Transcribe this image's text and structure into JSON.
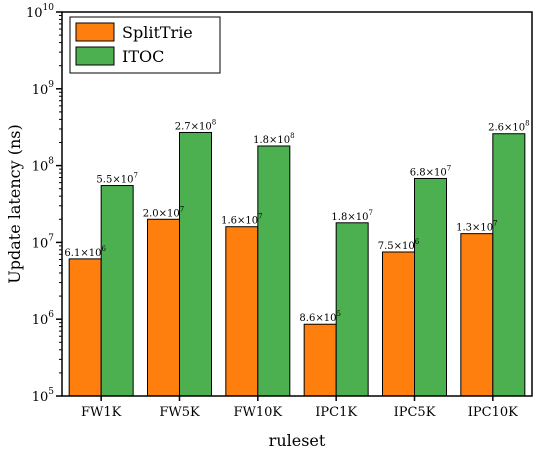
{
  "chart_data": {
    "type": "bar",
    "title": "",
    "xlabel": "ruleset",
    "ylabel": "Update latency (ns)",
    "yscale": "log",
    "ylim": [
      100000,
      10000000000
    ],
    "y_ticks": [
      {
        "base": "10",
        "exp": "5"
      },
      {
        "base": "10",
        "exp": "6"
      },
      {
        "base": "10",
        "exp": "7"
      },
      {
        "base": "10",
        "exp": "8"
      },
      {
        "base": "10",
        "exp": "9"
      },
      {
        "base": "10",
        "exp": "10"
      }
    ],
    "categories": [
      "FW1K",
      "FW5K",
      "FW10K",
      "IPC1K",
      "IPC5K",
      "IPC10K"
    ],
    "series": [
      {
        "name": "SplitTrie",
        "color": "#ff7f0e",
        "values": [
          6100000,
          20000000,
          16000000,
          860000,
          7500000,
          13000000
        ],
        "labels": [
          {
            "mantissa": "6.1×10",
            "exp": "6"
          },
          {
            "mantissa": "2.0×10",
            "exp": "7"
          },
          {
            "mantissa": "1.6×10",
            "exp": "7"
          },
          {
            "mantissa": "8.6×10",
            "exp": "5"
          },
          {
            "mantissa": "7.5×10",
            "exp": "6"
          },
          {
            "mantissa": "1.3×10",
            "exp": "7"
          }
        ]
      },
      {
        "name": "ITOC",
        "color": "#4caf50",
        "values": [
          55000000,
          270000000,
          180000000,
          18000000,
          68000000,
          260000000
        ],
        "labels": [
          {
            "mantissa": "5.5×10",
            "exp": "7"
          },
          {
            "mantissa": "2.7×10",
            "exp": "8"
          },
          {
            "mantissa": "1.8×10",
            "exp": "8"
          },
          {
            "mantissa": "1.8×10",
            "exp": "7"
          },
          {
            "mantissa": "6.8×10",
            "exp": "7"
          },
          {
            "mantissa": "2.6×10",
            "exp": "8"
          }
        ]
      }
    ],
    "legend_position": "top-left",
    "grid": false
  }
}
